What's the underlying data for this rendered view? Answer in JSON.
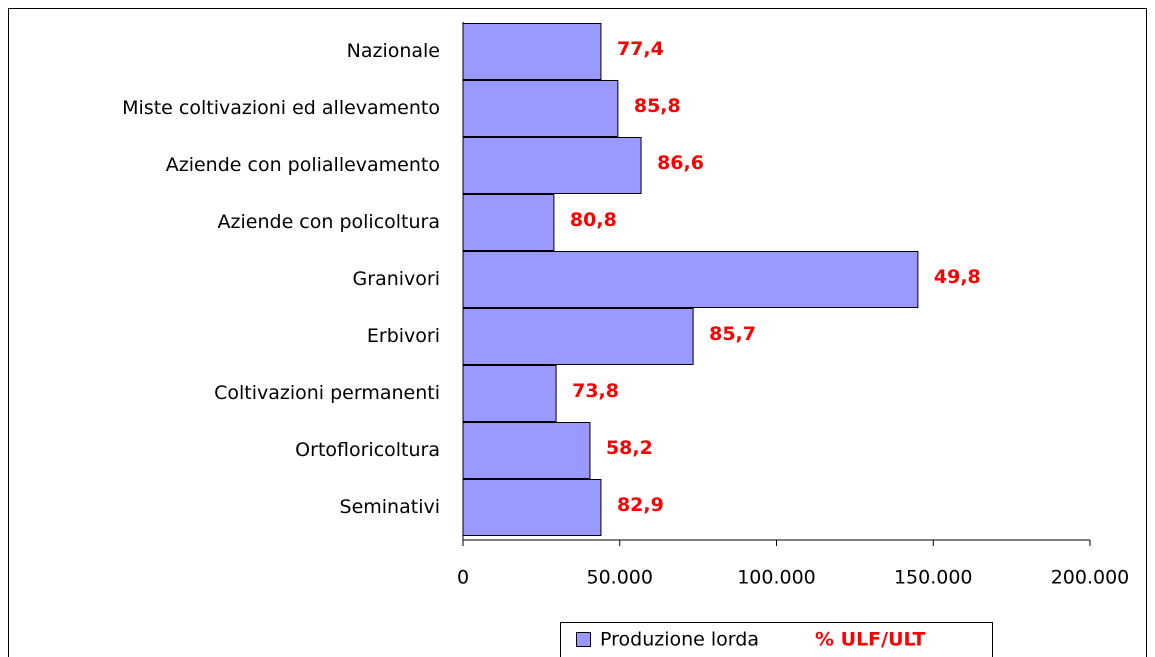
{
  "chart_data": {
    "type": "barh",
    "categories": [
      "Nazionale",
      "Miste coltivazioni ed allevamento",
      "Aziende con poliallevamento",
      "Aziende con policoltura",
      "Granivori",
      "Erbivori",
      "Coltivazioni permanenti",
      "Ortofloricoltura",
      "Seminativi"
    ],
    "series": [
      {
        "name": "Produzione lorda",
        "color": "#9999ff",
        "values": [
          44000,
          49400,
          56800,
          29000,
          145100,
          73400,
          29700,
          40500,
          44000
        ]
      },
      {
        "name": "% ULF/ULT",
        "color": "#ff0000",
        "values": [
          77.4,
          85.8,
          86.6,
          80.8,
          49.8,
          85.7,
          73.8,
          58.2,
          82.9
        ],
        "value_labels": [
          "77,4",
          "85,8",
          "86,6",
          "80,8",
          "49,8",
          "85,7",
          "73,8",
          "58,2",
          "82,9"
        ]
      }
    ],
    "xlim": [
      0,
      200000
    ],
    "xticks": [
      0,
      {
        "value": 50000,
        "label": "50.000"
      },
      {
        "value": 100000,
        "label": "100.000"
      },
      {
        "value": 150000,
        "label": "150.000"
      },
      {
        "value": 200000,
        "label": "200.000"
      }
    ],
    "legend": "bottom"
  }
}
